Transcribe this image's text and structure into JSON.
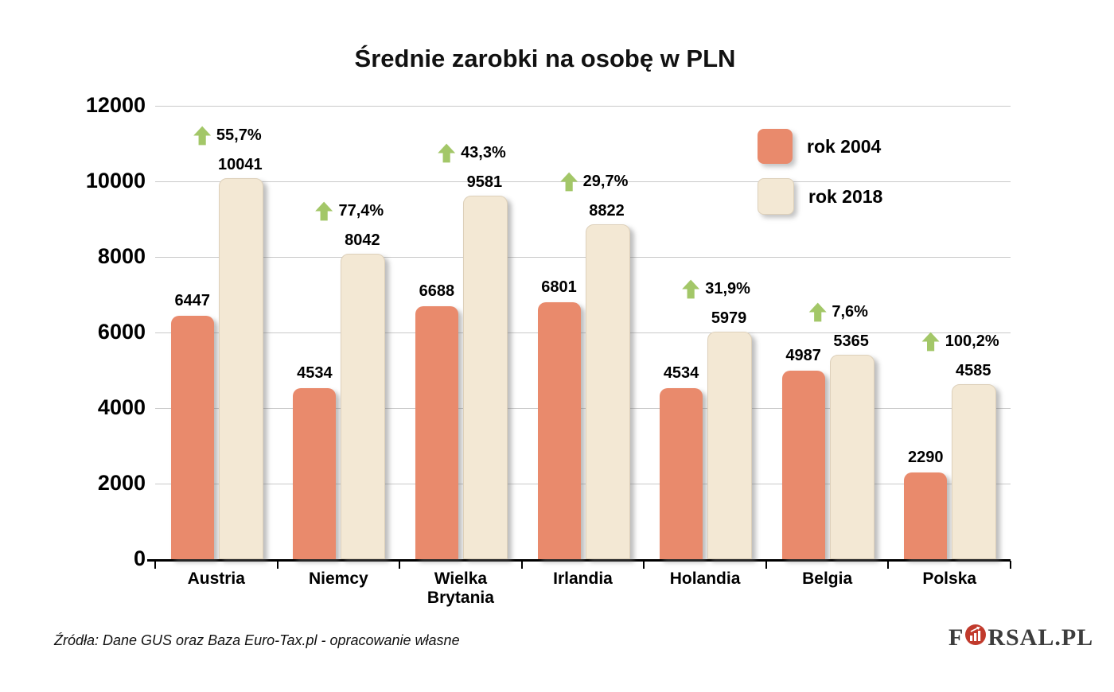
{
  "title": "Średnie zarobki na osobę w PLN",
  "legend": [
    {
      "label": "rok 2004",
      "color": "#E98A6C"
    },
    {
      "label": "rok 2018",
      "color": "#F3E8D4",
      "border_color": "#ddd0ba"
    }
  ],
  "footer": {
    "source": "Źródła: Dane GUS oraz Baza Euro-Tax.pl - opracowanie własne"
  },
  "logo": {
    "pre": "F",
    "post": "RSAL.PL",
    "circle_color": "#C13A2C"
  },
  "chart_data": {
    "type": "bar",
    "title": "Średnie zarobki na osobę w PLN",
    "categories": [
      "Austria",
      "Niemcy",
      "Wielka Brytania",
      "Irlandia",
      "Holandia",
      "Belgia",
      "Polska"
    ],
    "series": [
      {
        "name": "rok 2004",
        "color": "#E98A6C",
        "values": [
          6447,
          4534,
          6688,
          6801,
          4534,
          4987,
          2290
        ]
      },
      {
        "name": "rok 2018",
        "color": "#F3E8D4",
        "border_color": "#ddd0ba",
        "values": [
          10041,
          8042,
          9581,
          8822,
          5979,
          5365,
          4585
        ]
      }
    ],
    "pct_change": [
      "55,7%",
      "77,4%",
      "43,3%",
      "29,7%",
      "31,9%",
      "7,6%",
      "100,2%"
    ],
    "arrow_color": "#A3C768",
    "xlabel": "",
    "ylabel": "",
    "ylim": [
      0,
      12000
    ],
    "yticks": [
      0,
      2000,
      4000,
      6000,
      8000,
      10000,
      12000
    ],
    "grid": true,
    "legend_position": "top-right"
  }
}
